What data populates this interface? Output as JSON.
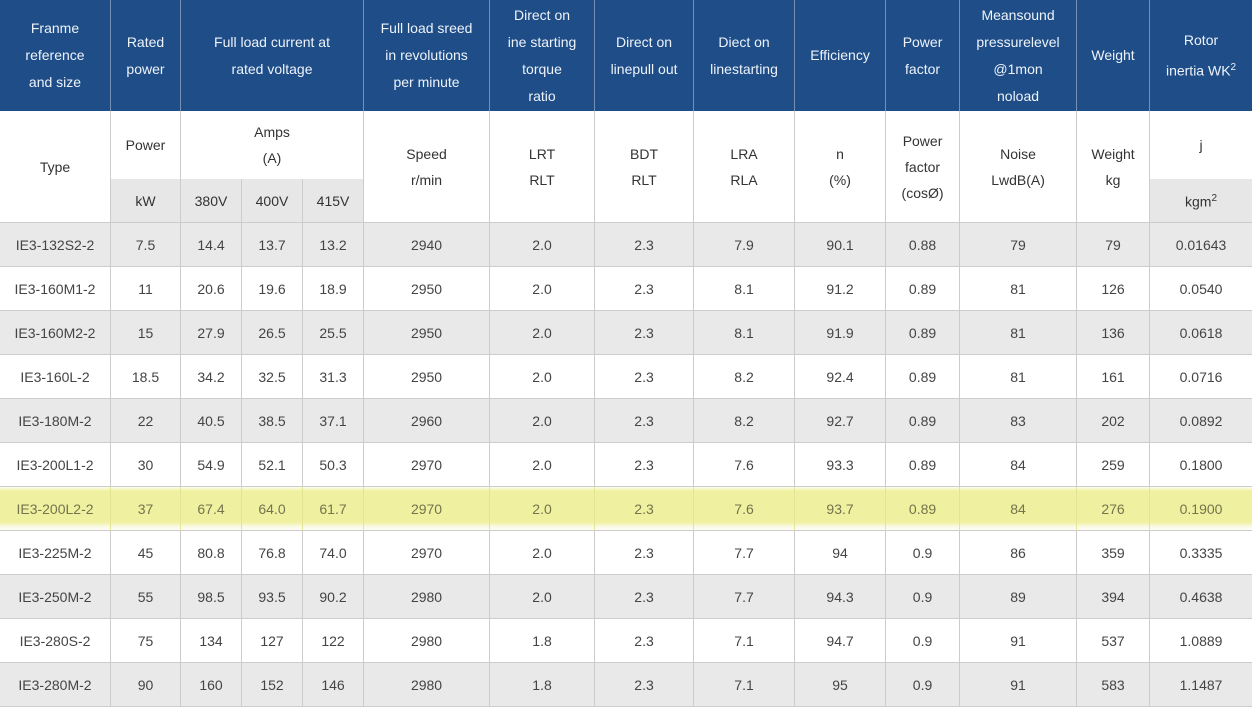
{
  "top_header": {
    "frame": "Franme\nreference\nand size",
    "rated_power": "Rated\npower",
    "full_load_current": "Full load current at\nrated voltage",
    "full_load_speed": "Full load sreed\nin revolutions\nper minute",
    "dol_torque": "Direct on\nine starting\ntorque\nratio",
    "dol_pullout": "Direct on\nlinepull out",
    "dol_starting": "Diect on\nlinestarting",
    "efficiency": "Efficiency",
    "power_factor": "Power\nfactor",
    "noise": "Meansound\npressurelevel\n@1mon\nnoload",
    "weight": "Weight",
    "rotor_inertia": "Rotor\ninertia WK",
    "rotor_inertia_sup": "2"
  },
  "sub_header": {
    "type": "Type",
    "power": "Power",
    "amps": "Amps\n(A)",
    "speed": "Speed\nr/min",
    "lrt": "LRT\nRLT",
    "bdt": "BDT\nRLT",
    "lra": "LRA\nRLA",
    "n": "n\n(%)",
    "pf": "Power\nfactor\n(cosØ)",
    "noise": "Noise\nLwdB(A)",
    "weight": "Weight\nkg",
    "j": "j",
    "kw": "kW",
    "v380": "380V",
    "v400": "400V",
    "v415": "415V",
    "kgm": "kgm",
    "kgm_sup": "2"
  },
  "table_meta": {
    "highlighted_row_index": 6,
    "colors": {
      "header_bg": "#1e4d87",
      "header_text": "#eef3fa",
      "stripe_bg": "#e9e9e9",
      "subheader_gray_bg": "#e7e7e7",
      "highlight_bg": "#f0f0a1",
      "highlight_text": "#74744d",
      "border": "#cccccc",
      "body_text": "#444444"
    }
  },
  "chart_data": {
    "type": "table",
    "columns": [
      "Type",
      "Power kW",
      "Amps (A) 380V",
      "Amps (A) 400V",
      "Amps (A) 415V",
      "Speed r/min",
      "LRT RLT",
      "BDT RLT",
      "LRA RLA",
      "n (%)",
      "Power factor (cosØ)",
      "Noise LwdB(A)",
      "Weight kg",
      "j kgm2"
    ],
    "highlighted_row": "IE3-200L2-2",
    "rows": [
      [
        "IE3-132S2-2",
        "7.5",
        "14.4",
        "13.7",
        "13.2",
        "2940",
        "2.0",
        "2.3",
        "7.9",
        "90.1",
        "0.88",
        "79",
        "79",
        "0.01643"
      ],
      [
        "IE3-160M1-2",
        "11",
        "20.6",
        "19.6",
        "18.9",
        "2950",
        "2.0",
        "2.3",
        "8.1",
        "91.2",
        "0.89",
        "81",
        "126",
        "0.0540"
      ],
      [
        "IE3-160M2-2",
        "15",
        "27.9",
        "26.5",
        "25.5",
        "2950",
        "2.0",
        "2.3",
        "8.1",
        "91.9",
        "0.89",
        "81",
        "136",
        "0.0618"
      ],
      [
        "IE3-160L-2",
        "18.5",
        "34.2",
        "32.5",
        "31.3",
        "2950",
        "2.0",
        "2.3",
        "8.2",
        "92.4",
        "0.89",
        "81",
        "161",
        "0.0716"
      ],
      [
        "IE3-180M-2",
        "22",
        "40.5",
        "38.5",
        "37.1",
        "2960",
        "2.0",
        "2.3",
        "8.2",
        "92.7",
        "0.89",
        "83",
        "202",
        "0.0892"
      ],
      [
        "IE3-200L1-2",
        "30",
        "54.9",
        "52.1",
        "50.3",
        "2970",
        "2.0",
        "2.3",
        "7.6",
        "93.3",
        "0.89",
        "84",
        "259",
        "0.1800"
      ],
      [
        "IE3-200L2-2",
        "37",
        "67.4",
        "64.0",
        "61.7",
        "2970",
        "2.0",
        "2.3",
        "7.6",
        "93.7",
        "0.89",
        "84",
        "276",
        "0.1900"
      ],
      [
        "IE3-225M-2",
        "45",
        "80.8",
        "76.8",
        "74.0",
        "2970",
        "2.0",
        "2.3",
        "7.7",
        "94",
        "0.9",
        "86",
        "359",
        "0.3335"
      ],
      [
        "IE3-250M-2",
        "55",
        "98.5",
        "93.5",
        "90.2",
        "2980",
        "2.0",
        "2.3",
        "7.7",
        "94.3",
        "0.9",
        "89",
        "394",
        "0.4638"
      ],
      [
        "IE3-280S-2",
        "75",
        "134",
        "127",
        "122",
        "2980",
        "1.8",
        "2.3",
        "7.1",
        "94.7",
        "0.9",
        "91",
        "537",
        "1.0889"
      ],
      [
        "IE3-280M-2",
        "90",
        "160",
        "152",
        "146",
        "2980",
        "1.8",
        "2.3",
        "7.1",
        "95",
        "0.9",
        "91",
        "583",
        "1.1487"
      ]
    ]
  }
}
